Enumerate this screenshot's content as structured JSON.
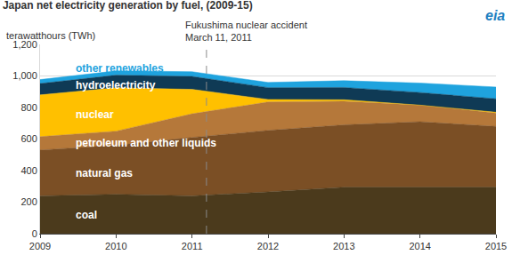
{
  "chart_data": {
    "type": "area",
    "stacked": true,
    "title": "Japan net electricity generation by fuel, (2009-15)",
    "subtitle": "terawatthours (TWh)",
    "logo": "eia",
    "annotation": {
      "text": [
        "Fukushima nuclear accident",
        "March 11, 2011"
      ],
      "x": 2011.19
    },
    "x": [
      2009,
      2010,
      2011,
      2012,
      2013,
      2014,
      2015
    ],
    "series": [
      {
        "name": "coal",
        "color": "#4b3a1c",
        "values": [
          240,
          250,
          240,
          265,
          295,
          295,
          295
        ]
      },
      {
        "name": "natural gas",
        "color": "#7b4f25",
        "values": [
          290,
          310,
          370,
          390,
          395,
          415,
          385
        ]
      },
      {
        "name": "petroleum and other liquids",
        "color": "#b5783a",
        "values": [
          85,
          90,
          150,
          180,
          150,
          105,
          85
        ]
      },
      {
        "name": "nuclear",
        "color": "#ffc000",
        "values": [
          265,
          275,
          155,
          16,
          9,
          0,
          5
        ]
      },
      {
        "name": "hydroelectricity",
        "color": "#0f3a55",
        "values": [
          72,
          80,
          82,
          75,
          78,
          80,
          85
        ]
      },
      {
        "name": "other renewables",
        "color": "#1fa3de",
        "values": [
          25,
          27,
          30,
          33,
          43,
          60,
          75
        ]
      }
    ],
    "xlim": [
      2009,
      2015
    ],
    "xticks": [
      2009,
      2010,
      2011,
      2012,
      2013,
      2014,
      2015
    ],
    "ylim": [
      0,
      1200
    ],
    "yticks": [
      0,
      200,
      400,
      600,
      800,
      {
        "value": 1000,
        "label": "1,000"
      },
      {
        "value": 1200,
        "label": "1,200"
      }
    ],
    "grid": true
  }
}
